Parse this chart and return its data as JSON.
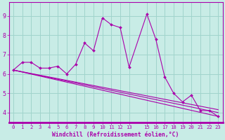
{
  "xlabel": "Windchill (Refroidissement éolien,°C)",
  "bg_color": "#c8ece6",
  "grid_color": "#a0d4cc",
  "line_color": "#aa00aa",
  "spine_color": "#aa00aa",
  "tick_color": "#aa00aa",
  "xlim": [
    -0.5,
    23.5
  ],
  "ylim": [
    3.5,
    9.7
  ],
  "yticks": [
    4,
    5,
    6,
    7,
    8,
    9
  ],
  "xtick_positions": [
    0,
    1,
    2,
    3,
    4,
    5,
    6,
    7,
    8,
    9,
    10,
    11,
    12,
    13,
    15,
    16,
    17,
    18,
    19,
    20,
    21,
    22,
    23
  ],
  "xtick_labels": [
    "0",
    "1",
    "2",
    "3",
    "4",
    "5",
    "6",
    "7",
    "8",
    "9",
    "10",
    "11",
    "12",
    "13",
    "15",
    "16",
    "17",
    "18",
    "19",
    "20",
    "21",
    "22",
    "23"
  ],
  "main_x": [
    0,
    1,
    2,
    3,
    4,
    5,
    6,
    7,
    8,
    9,
    10,
    11,
    12,
    13,
    15,
    16,
    17,
    18,
    19,
    20,
    21,
    22,
    23
  ],
  "main_y": [
    6.2,
    6.6,
    6.6,
    6.3,
    6.3,
    6.4,
    6.0,
    6.5,
    7.6,
    7.2,
    8.9,
    8.55,
    8.4,
    6.35,
    9.1,
    7.8,
    5.85,
    5.0,
    4.55,
    4.9,
    4.1,
    4.1,
    3.8
  ],
  "line2_x": [
    0,
    23
  ],
  "line2_y": [
    6.2,
    3.8
  ],
  "line3_x": [
    0,
    23
  ],
  "line3_y": [
    6.2,
    4.0
  ],
  "line4_x": [
    0,
    23
  ],
  "line4_y": [
    6.2,
    4.15
  ]
}
